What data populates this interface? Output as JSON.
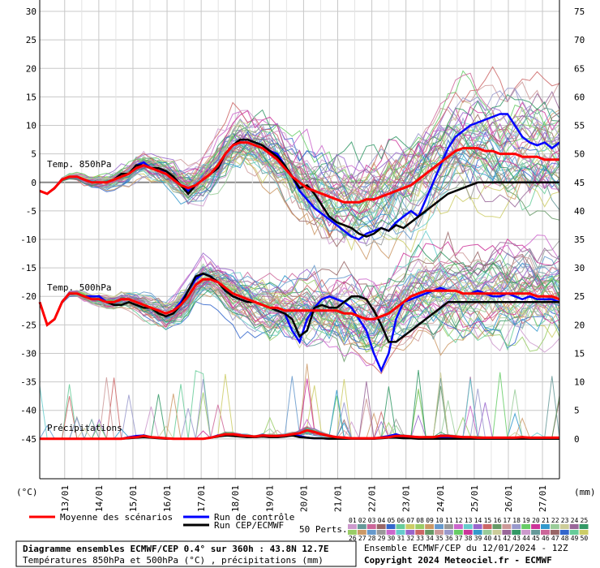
{
  "chart_data": {
    "type": "line",
    "left_axis": {
      "unit": "(°C)",
      "ticks": [
        30,
        25,
        20,
        15,
        10,
        5,
        0,
        -5,
        -10,
        -15,
        -20,
        -25,
        -30,
        -35,
        -40,
        -45
      ],
      "range": [
        -52,
        32
      ]
    },
    "right_axis": {
      "unit": "(mm)",
      "ticks": [
        75,
        70,
        65,
        60,
        55,
        50,
        45,
        40,
        35,
        30,
        25,
        20,
        15,
        10,
        5,
        0
      ]
    },
    "x_ticks": [
      "13/01",
      "14/01",
      "15/01",
      "16/01",
      "17/01",
      "18/01",
      "19/01",
      "20/01",
      "21/01",
      "22/01",
      "23/01",
      "24/01",
      "25/01",
      "26/01",
      "27/01"
    ],
    "grid": true,
    "panels": [
      {
        "label": "Temp. 850hPa"
      },
      {
        "label": "Temp. 500hPa"
      },
      {
        "label": "Précipitations"
      }
    ],
    "series": [
      {
        "name": "Moyenne des scénarios",
        "color": "#ff0000",
        "t850": [
          -1.5,
          -2,
          -1,
          0.5,
          1,
          1,
          0.5,
          0,
          0,
          0,
          0.5,
          1,
          1.5,
          2.5,
          3,
          2.5,
          2,
          1.5,
          0.5,
          -0.5,
          -1,
          -0.5,
          0.5,
          1.5,
          3,
          5,
          6.5,
          7,
          7,
          6.5,
          6,
          5,
          4,
          2.5,
          1,
          0,
          -1,
          -1.5,
          -2,
          -2.5,
          -3,
          -3.5,
          -3.5,
          -3.5,
          -3,
          -3,
          -2.5,
          -2,
          -1.5,
          -1,
          -0.5,
          0.5,
          1.5,
          2.5,
          3.5,
          4.5,
          5.5,
          6,
          6,
          6,
          5.5,
          5.5,
          5,
          5,
          5,
          4.5,
          4.5,
          4.5,
          4,
          4,
          4
        ],
        "t500": [
          -21,
          -25,
          -24,
          -21,
          -19.5,
          -19.5,
          -20,
          -20.5,
          -20.5,
          -21,
          -21,
          -20.5,
          -20.5,
          -21,
          -21.5,
          -22,
          -22.5,
          -23,
          -22.5,
          -21.5,
          -20,
          -18,
          -17,
          -17,
          -17.5,
          -18.5,
          -19.5,
          -20,
          -20.5,
          -21,
          -21.5,
          -22,
          -22,
          -22.5,
          -22.5,
          -22.5,
          -22.5,
          -22.5,
          -22.5,
          -22.5,
          -22.5,
          -23,
          -23,
          -23.5,
          -24,
          -24,
          -23.5,
          -23,
          -22,
          -21,
          -20,
          -19.5,
          -19,
          -19,
          -19,
          -19,
          -19,
          -19.5,
          -19.5,
          -19.5,
          -19.5,
          -19.5,
          -19.5,
          -19.5,
          -19.5,
          -19.5,
          -19.5,
          -20,
          -20,
          -20,
          -20.5
        ],
        "precip": [
          0,
          0,
          0,
          0,
          0,
          0,
          0,
          0,
          0,
          0,
          0,
          0,
          0.2,
          0.3,
          0.5,
          0.3,
          0.2,
          0.1,
          0,
          0,
          0,
          0,
          0,
          0.2,
          0.5,
          0.8,
          0.8,
          0.6,
          0.5,
          0.4,
          0.6,
          0.5,
          0.5,
          0.6,
          0.8,
          1,
          1.5,
          1.2,
          0.8,
          0.5,
          0.3,
          0.2,
          0.1,
          0.1,
          0.1,
          0.1,
          0.2,
          0.3,
          0.5,
          0.5,
          0.4,
          0.3,
          0.3,
          0.3,
          0.5,
          0.5,
          0.4,
          0.3,
          0.3,
          0.2,
          0.2,
          0.2,
          0.2,
          0.2,
          0.2,
          0.3,
          0.2,
          0.2,
          0.2,
          0.2,
          0.2
        ]
      },
      {
        "name": "Run de contrôle",
        "color": "#0000ff",
        "t850": [
          -1.5,
          -2,
          -1,
          0.5,
          1,
          1,
          0.5,
          0,
          0,
          0,
          0.5,
          1.5,
          1.5,
          3,
          3.5,
          2.5,
          2,
          2,
          1,
          -0.5,
          -1.5,
          -0.5,
          0.5,
          1.5,
          2.5,
          5,
          6.5,
          7.5,
          7.5,
          7,
          6.5,
          5.5,
          5,
          3,
          1,
          -1.5,
          -3,
          -4.5,
          -5.5,
          -6.5,
          -7.5,
          -8.5,
          -9.5,
          -10,
          -9,
          -8.5,
          -8,
          -8.5,
          -7,
          -6,
          -5,
          -6,
          -3,
          0,
          3,
          6,
          8,
          9,
          10,
          10.5,
          11,
          11.5,
          12,
          12,
          10,
          8,
          7,
          6.5,
          7,
          6,
          7
        ],
        "t500": [
          -21,
          -25,
          -24,
          -21,
          -19.5,
          -19.5,
          -20,
          -20,
          -20,
          -21,
          -21,
          -20.5,
          -20.5,
          -21,
          -21.5,
          -22,
          -22.5,
          -23,
          -22.5,
          -21,
          -19,
          -17,
          -16,
          -16.5,
          -17.5,
          -19,
          -20,
          -20.5,
          -21,
          -21,
          -21.5,
          -22,
          -22.5,
          -23,
          -26,
          -28,
          -24,
          -22,
          -20.5,
          -20,
          -20.5,
          -21,
          -22,
          -24,
          -26,
          -30,
          -33,
          -30,
          -24,
          -21,
          -20.5,
          -20,
          -19.5,
          -19,
          -18.5,
          -19,
          -19,
          -19.5,
          -19.5,
          -19,
          -19.5,
          -20,
          -20,
          -19.5,
          -20,
          -20.5,
          -20,
          -20.5,
          -20.5,
          -20.5,
          -21
        ],
        "precip": [
          0,
          0,
          0,
          0,
          0,
          0,
          0,
          0,
          0,
          0,
          0,
          0,
          0.3,
          0.5,
          0.6,
          0.3,
          0.2,
          0.1,
          0,
          0,
          0,
          0,
          0,
          0.2,
          0.6,
          0.6,
          0.8,
          0.5,
          0.3,
          0.3,
          0.5,
          0.3,
          0.3,
          0.5,
          0.8,
          0.5,
          0.2,
          0.1,
          0.1,
          0,
          0,
          0,
          0,
          0,
          0,
          0,
          0.3,
          0.5,
          0.8,
          0.4,
          0.2,
          0.2,
          0.1,
          0.2,
          0.3,
          0.2,
          0.2,
          0.1,
          0.1,
          0.2,
          0.1,
          0.1,
          0.1,
          0.1,
          0.1,
          0.2,
          0.2,
          0.1,
          0.1,
          0.1,
          0.1
        ]
      },
      {
        "name": "Run CEP/ECMWF",
        "color": "#000000",
        "t850": [
          -1.5,
          -2,
          -1,
          0.5,
          1,
          1,
          0.5,
          0,
          0,
          0,
          0.5,
          1.5,
          1.5,
          3,
          3,
          2.5,
          2.5,
          2,
          1,
          -0.5,
          -2,
          -0.5,
          0.5,
          1.5,
          2.5,
          5,
          6.5,
          7.5,
          7.5,
          7,
          6.5,
          5.5,
          4.5,
          3,
          1,
          -1,
          -0.5,
          -2,
          -4,
          -6,
          -7,
          -7.5,
          -8,
          -9,
          -9.5,
          -9,
          -8,
          -8.5,
          -7.5,
          -8,
          -7,
          -6,
          -5,
          -4,
          -3,
          -2,
          -1.5,
          -1,
          -0.5,
          0,
          0,
          0,
          0,
          0,
          0,
          0,
          0,
          0,
          0,
          0,
          0
        ],
        "t500": [
          -21,
          -25,
          -24,
          -21,
          -19.5,
          -19.5,
          -20,
          -20.5,
          -20.5,
          -21,
          -21.5,
          -21.5,
          -21,
          -21.5,
          -22,
          -22,
          -23,
          -23.5,
          -23,
          -21.5,
          -19,
          -16.5,
          -16,
          -16.5,
          -17.5,
          -19,
          -20,
          -20.5,
          -21,
          -21,
          -21.5,
          -22,
          -22.5,
          -23,
          -24,
          -27,
          -26,
          -22,
          -21.5,
          -22,
          -22,
          -21,
          -20,
          -20,
          -20.5,
          -22.5,
          -25,
          -28,
          -28,
          -27,
          -26,
          -25,
          -24,
          -23,
          -22,
          -21,
          -21,
          -21,
          -21,
          -21,
          -21,
          -21,
          -21,
          -21,
          -21,
          -21,
          -21,
          -21,
          -21,
          -21,
          -21
        ],
        "precip": [
          0,
          0,
          0,
          0,
          0,
          0,
          0,
          0,
          0,
          0,
          0,
          0,
          0.1,
          0.2,
          0.3,
          0.2,
          0.1,
          0,
          0,
          0,
          0,
          0,
          0,
          0.2,
          0.4,
          0.6,
          0.5,
          0.4,
          0.3,
          0.3,
          0.4,
          0.3,
          0.3,
          0.4,
          0.6,
          0.3,
          0.2,
          0.1,
          0.1,
          0,
          0,
          0,
          0,
          0,
          0,
          0,
          0.1,
          0.2,
          0.2,
          0.1,
          0.1,
          0,
          0,
          0,
          0,
          0,
          0,
          0,
          0,
          0,
          0,
          0,
          0,
          0,
          0,
          0,
          0,
          0,
          0,
          0,
          0
        ]
      }
    ],
    "members": {
      "count": 50,
      "label": "50 Perts."
    }
  },
  "legend": [
    {
      "label": "Moyenne des scénarios",
      "color": "#ff0000"
    },
    {
      "label": "Run de contrôle",
      "color": "#0000ff"
    },
    {
      "label": "Run CEP/ECMWF",
      "color": "#000000"
    }
  ],
  "member_palette": {
    "row1": [
      "01",
      "02",
      "03",
      "04",
      "05",
      "06",
      "07",
      "08",
      "09",
      "10",
      "11",
      "12",
      "13",
      "14",
      "15",
      "16",
      "17",
      "18",
      "19",
      "20",
      "21",
      "22",
      "23",
      "24",
      "25"
    ],
    "row2": [
      "26",
      "27",
      "28",
      "29",
      "30",
      "31",
      "32",
      "33",
      "34",
      "35",
      "36",
      "37",
      "38",
      "39",
      "40",
      "41",
      "42",
      "43",
      "44",
      "45",
      "46",
      "47",
      "48",
      "49",
      "50"
    ],
    "colors": [
      "#cc99cc",
      "#669999",
      "#cc6699",
      "#996666",
      "#3366cc",
      "#66cc99",
      "#cccc66",
      "#99cc66",
      "#cc9966",
      "#6699cc",
      "#999999",
      "#cc66cc",
      "#66cccc",
      "#9966cc",
      "#cc6666",
      "#669966",
      "#cc9999",
      "#9999cc",
      "#66cc66",
      "#cc3399",
      "#3399cc",
      "#99cc99",
      "#cccc99",
      "#996699",
      "#339966"
    ]
  },
  "info": {
    "title": "Diagramme ensembles ECMWF/CEP 0.4° sur 360h : 43.8N 12.7E",
    "subtitle": "Températures 850hPa et 500hPa (°C) , précipitations (mm)",
    "run": "Ensemble ECMWF/CEP du 12/01/2024 - 12Z",
    "copyright": "Copyright 2024 Meteociel.fr - ECMWF"
  }
}
